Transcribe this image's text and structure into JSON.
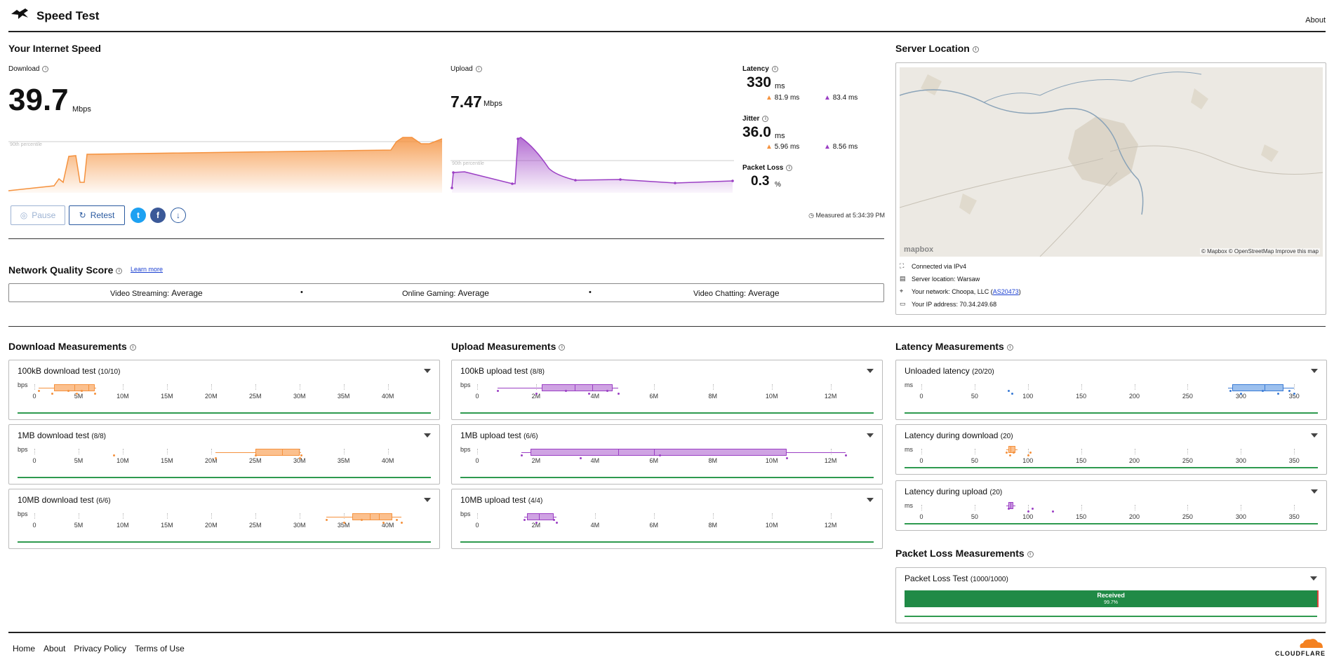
{
  "header": {
    "app_title": "Speed Test",
    "about_link": "About"
  },
  "speed": {
    "section_title": "Your Internet Speed",
    "download_label": "Download",
    "download_value": "39.7",
    "download_unit": "Mbps",
    "upload_label": "Upload",
    "upload_value": "7.47",
    "upload_unit": "Mbps",
    "percentile_label": "90th percentile",
    "latency_label": "Latency",
    "latency_value": "330",
    "latency_unit": "ms",
    "latency_down": "81.9",
    "latency_up": "83.4",
    "jitter_label": "Jitter",
    "jitter_value": "36.0",
    "jitter_unit": "ms",
    "jitter_down": "5.96",
    "jitter_up": "8.56",
    "small_unit": "ms",
    "packet_loss_label": "Packet Loss",
    "packet_loss_value": "0.3",
    "packet_loss_unit": "%",
    "measured_at": "Measured at 5:34:39 PM",
    "pause_label": "Pause",
    "retest_label": "Retest"
  },
  "server": {
    "section_title": "Server Location",
    "map_attribution": "© Mapbox © OpenStreetMap",
    "improve_map": "Improve this map",
    "mapbox_logo": "mapbox",
    "connected_via": "Connected via IPv4",
    "server_location": "Server location: Warsaw",
    "network_prefix": "Your network: Choopa, LLC (",
    "network_as": "AS20473",
    "network_suffix": ")",
    "ip_address": "Your IP address: 70.34.249.68"
  },
  "network_quality": {
    "title": "Network Quality Score",
    "learn_more": "Learn more",
    "items": [
      {
        "label": "Video Streaming:",
        "value": "Average"
      },
      {
        "label": "Online Gaming:",
        "value": "Average"
      },
      {
        "label": "Video Chatting:",
        "value": "Average"
      }
    ]
  },
  "download_measurements": {
    "title": "Download Measurements",
    "unit": "bps",
    "ticks": [
      "0",
      "5M",
      "10M",
      "15M",
      "20M",
      "25M",
      "30M",
      "35M",
      "40M"
    ],
    "tests": [
      {
        "name": "100kB download test",
        "count": "(10/10)"
      },
      {
        "name": "1MB download test",
        "count": "(8/8)"
      },
      {
        "name": "10MB download test",
        "count": "(6/6)"
      }
    ]
  },
  "upload_measurements": {
    "title": "Upload Measurements",
    "unit": "bps",
    "ticks": [
      "0",
      "2M",
      "4M",
      "6M",
      "8M",
      "10M",
      "12M"
    ],
    "tests": [
      {
        "name": "100kB upload test",
        "count": "(8/8)"
      },
      {
        "name": "1MB upload test",
        "count": "(6/6)"
      },
      {
        "name": "10MB upload test",
        "count": "(4/4)"
      }
    ]
  },
  "latency_measurements": {
    "title": "Latency Measurements",
    "unit": "ms",
    "ticks": [
      "0",
      "50",
      "100",
      "150",
      "200",
      "250",
      "300",
      "350"
    ],
    "tests": [
      {
        "name": "Unloaded latency",
        "count": "(20/20)"
      },
      {
        "name": "Latency during download",
        "count": "(20)"
      },
      {
        "name": "Latency during upload",
        "count": "(20)"
      }
    ]
  },
  "packet_loss": {
    "title": "Packet Loss Measurements",
    "test_name": "Packet Loss Test",
    "count": "(1000/1000)",
    "received_label": "Received",
    "received_pct": "99.7%",
    "received_fraction": 0.997
  },
  "footer": {
    "links": [
      "Home",
      "About",
      "Privacy Policy",
      "Terms of Use"
    ],
    "brand": "CLOUDFLARE"
  },
  "colors": {
    "download": "#f5923e",
    "upload": "#9b3fc4",
    "latency": "#3a7bd5",
    "green": "#2e9a4f",
    "link": "#1a3fd1"
  }
}
